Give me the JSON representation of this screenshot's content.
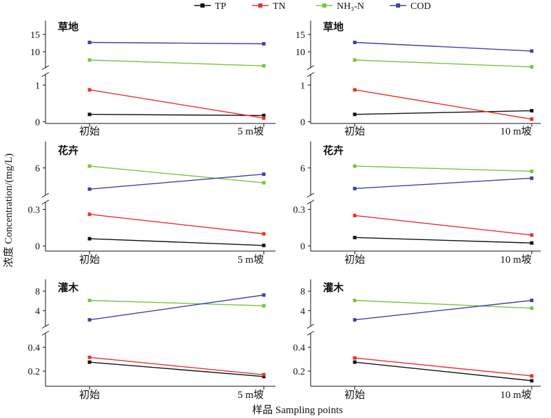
{
  "legend": {
    "series": [
      {
        "key": "TP",
        "label": "TP",
        "color": "#111111"
      },
      {
        "key": "TN",
        "label": "TN",
        "color": "#e8302a"
      },
      {
        "key": "NH3N",
        "label": "NH₃-N",
        "color": "#7cc242"
      },
      {
        "key": "COD",
        "label": "COD",
        "color": "#3c43a0"
      }
    ]
  },
  "y_axis_title": "浓度 Concentration/(mg/L)",
  "x_axis_title": "样品 Sampling points",
  "chart_data": [
    {
      "type": "line",
      "title": "草地",
      "categories": [
        "初始",
        "5 m坡"
      ],
      "upper_ticks": [
        "10",
        "15"
      ],
      "lower_ticks": [
        "0",
        "1"
      ],
      "series": [
        {
          "name": "TP",
          "values": [
            0.2,
            0.17
          ]
        },
        {
          "name": "TN",
          "values": [
            0.87,
            0.1
          ]
        },
        {
          "name": "NH₃-N",
          "values": [
            7.6,
            5.9
          ]
        },
        {
          "name": "COD",
          "values": [
            12.7,
            12.3
          ]
        }
      ]
    },
    {
      "type": "line",
      "title": "草地",
      "categories": [
        "初始",
        "10 m坡"
      ],
      "upper_ticks": [
        "10",
        "15"
      ],
      "lower_ticks": [
        "0",
        "1"
      ],
      "series": [
        {
          "name": "TP",
          "values": [
            0.2,
            0.3
          ]
        },
        {
          "name": "TN",
          "values": [
            0.87,
            0.07
          ]
        },
        {
          "name": "NH₃-N",
          "values": [
            7.6,
            5.6
          ]
        },
        {
          "name": "COD",
          "values": [
            12.7,
            10.2
          ]
        }
      ]
    },
    {
      "type": "line",
      "title": "花卉",
      "categories": [
        "初始",
        "5 m坡"
      ],
      "upper_ticks": [
        "6"
      ],
      "lower_ticks": [
        "0",
        "0.3"
      ],
      "series": [
        {
          "name": "TP",
          "values": [
            0.06,
            0.005
          ]
        },
        {
          "name": "TN",
          "values": [
            0.26,
            0.1
          ]
        },
        {
          "name": "NH₃-N",
          "values": [
            6.15,
            4.7
          ]
        },
        {
          "name": "COD",
          "values": [
            4.15,
            5.45
          ]
        }
      ]
    },
    {
      "type": "line",
      "title": "花卉",
      "categories": [
        "初始",
        "10 m坡"
      ],
      "upper_ticks": [
        "6"
      ],
      "lower_ticks": [
        "0",
        "0.3"
      ],
      "series": [
        {
          "name": "TP",
          "values": [
            0.07,
            0.025
          ]
        },
        {
          "name": "TN",
          "values": [
            0.25,
            0.09
          ]
        },
        {
          "name": "NH₃-N",
          "values": [
            6.15,
            5.7
          ]
        },
        {
          "name": "COD",
          "values": [
            4.2,
            5.1
          ]
        }
      ]
    },
    {
      "type": "line",
      "title": "灌木",
      "categories": [
        "初始",
        "5 m坡"
      ],
      "upper_ticks": [
        "4",
        "8"
      ],
      "lower_ticks": [
        "0.2",
        "0.4"
      ],
      "series": [
        {
          "name": "TP",
          "values": [
            0.275,
            0.155
          ]
        },
        {
          "name": "TN",
          "values": [
            0.315,
            0.17
          ]
        },
        {
          "name": "NH₃-N",
          "values": [
            6.1,
            5.0
          ]
        },
        {
          "name": "COD",
          "values": [
            2.1,
            7.2
          ]
        }
      ]
    },
    {
      "type": "line",
      "title": "灌木",
      "categories": [
        "初始",
        "10 m坡"
      ],
      "upper_ticks": [
        "4",
        "8"
      ],
      "lower_ticks": [
        "0.2",
        "0.4"
      ],
      "series": [
        {
          "name": "TP",
          "values": [
            0.275,
            0.12
          ]
        },
        {
          "name": "TN",
          "values": [
            0.31,
            0.16
          ]
        },
        {
          "name": "NH₃-N",
          "values": [
            6.1,
            4.5
          ]
        },
        {
          "name": "COD",
          "values": [
            2.1,
            6.1
          ]
        }
      ]
    }
  ]
}
